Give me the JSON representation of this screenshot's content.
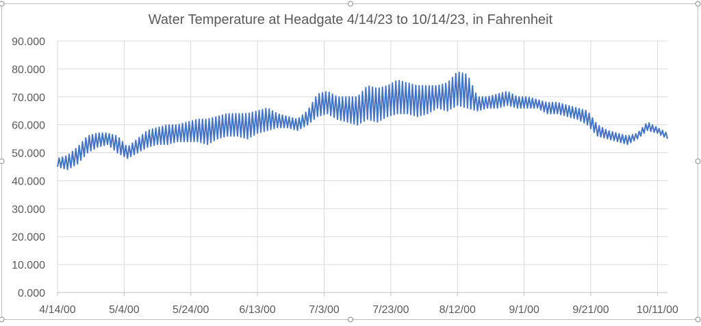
{
  "chart_data": {
    "type": "line",
    "title": "Water Temperature at Headgate 4/14/23 to 10/14/23, in Fahrenheit",
    "xlabel": "",
    "ylabel": "",
    "ylim": [
      0,
      90
    ],
    "yticks": [
      "0.000",
      "10.000",
      "20.000",
      "30.000",
      "40.000",
      "50.000",
      "60.000",
      "70.000",
      "80.000",
      "90.000"
    ],
    "xticks": [
      "4/14/00",
      "5/4/00",
      "5/24/00",
      "6/13/00",
      "7/3/00",
      "7/23/00",
      "8/12/00",
      "9/1/00",
      "9/21/00",
      "10/11/00"
    ],
    "xtick_days": [
      0,
      20,
      40,
      60,
      80,
      100,
      120,
      140,
      160,
      180
    ],
    "xlim_days": [
      0,
      183
    ],
    "grid": true,
    "line_color": "#4472c4",
    "series": [
      {
        "name": "",
        "x": [
          0,
          3,
          6,
          9,
          12,
          15,
          18,
          21,
          24,
          27,
          30,
          33,
          36,
          39,
          42,
          45,
          48,
          51,
          54,
          57,
          60,
          63,
          66,
          69,
          72,
          75,
          78,
          81,
          84,
          87,
          90,
          93,
          96,
          99,
          102,
          105,
          108,
          111,
          114,
          117,
          120,
          123,
          126,
          129,
          132,
          135,
          138,
          141,
          144,
          147,
          150,
          153,
          156,
          159,
          162,
          165,
          168,
          171,
          174,
          177,
          180,
          183
        ],
        "daily_min": [
          45,
          44,
          46,
          50,
          52,
          53,
          50,
          48,
          50,
          52,
          53,
          53,
          54,
          54,
          54,
          53,
          55,
          56,
          56,
          55,
          57,
          58,
          59,
          59,
          58,
          60,
          63,
          64,
          62,
          61,
          60,
          62,
          61,
          63,
          64,
          64,
          63,
          64,
          66,
          65,
          67,
          66,
          65,
          66,
          66,
          67,
          66,
          66,
          66,
          64,
          64,
          63,
          62,
          60,
          56,
          55,
          54,
          53,
          55,
          58,
          57,
          55
        ],
        "daily_max": [
          48,
          49,
          52,
          56,
          57,
          57,
          56,
          52,
          55,
          58,
          59,
          60,
          60,
          61,
          62,
          62,
          63,
          64,
          64,
          64,
          65,
          66,
          64,
          63,
          62,
          65,
          71,
          72,
          70,
          70,
          70,
          74,
          73,
          74,
          76,
          75,
          74,
          74,
          74,
          75,
          79,
          78,
          70,
          70,
          71,
          72,
          70,
          70,
          69,
          68,
          68,
          67,
          66,
          65,
          60,
          58,
          57,
          56,
          57,
          61,
          59,
          57
        ]
      }
    ]
  }
}
